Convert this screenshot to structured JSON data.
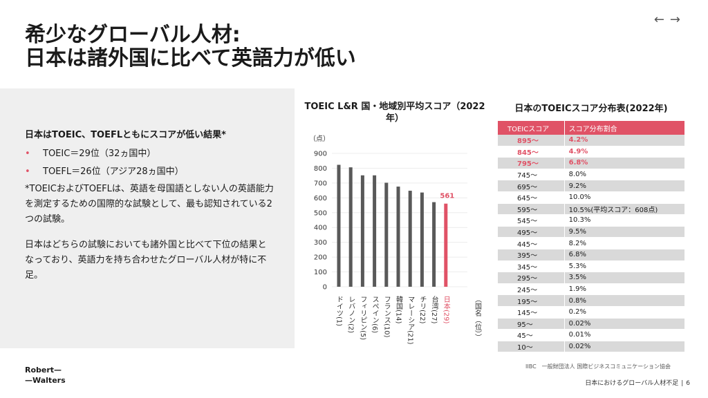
{
  "nav": {
    "prev": "←",
    "next": "→"
  },
  "title": {
    "line1": "希少なグローバル人材:",
    "line2": "日本は諸外国に比べて英語力が低い"
  },
  "left_panel": {
    "heading": "日本はTOEIC、TOEFLともにスコアが低い結果*",
    "bullets": [
      "TOEIC＝29位（32ヵ国中）",
      "TOEFL＝26位（アジア28ヵ国中）"
    ],
    "note": "*TOEICおよびTOEFLは、英語を母国語としない人の英語能力を測定するための国際的な試験として、最も認知されている2つの試験。",
    "conclusion": "日本はどちらの試験においても諸外国と比べて下位の結果となっており、英語力を持ち合わせたグローバル人材が特に不足。"
  },
  "chart_data": {
    "type": "bar",
    "title": "TOEIC L&R 国・地域別平均スコア（2022年）",
    "ylabel": "（点）",
    "xlabel": "（国名（位））",
    "ylim": [
      0,
      900
    ],
    "yticks": [
      0,
      100,
      200,
      300,
      400,
      500,
      600,
      700,
      800,
      900
    ],
    "categories": [
      "ドイツ(1)",
      "レバノン(2)",
      "フィリピン(5)",
      "スペイン(6)",
      "フランス(10)",
      "韓国(14)",
      "マレーシア(21)",
      "チリ(22)",
      "台湾(27)",
      "日本(29)"
    ],
    "values": [
      823,
      806,
      752,
      752,
      702,
      676,
      648,
      636,
      571,
      561
    ],
    "highlight_index": 9,
    "highlight_label": "561",
    "bar_color": "#595959",
    "highlight_color": "#e05266"
  },
  "table": {
    "title": "日本のTOEICスコア分布表(2022年)",
    "headers": [
      "TOEICスコア",
      "スコア分布割合"
    ],
    "rows": [
      {
        "score": "895～",
        "pct": "4.2%",
        "hl": true
      },
      {
        "score": "845～",
        "pct": "4.9%",
        "hl": true
      },
      {
        "score": "795～",
        "pct": "6.8%",
        "hl": true
      },
      {
        "score": "745～",
        "pct": "8.0%"
      },
      {
        "score": "695～",
        "pct": "9.2%"
      },
      {
        "score": "645～",
        "pct": "10.0%"
      },
      {
        "score": "595～",
        "pct": "10.5%(平均スコア：608点)"
      },
      {
        "score": "545～",
        "pct": "10.3%"
      },
      {
        "score": "495～",
        "pct": "9.5%"
      },
      {
        "score": "445～",
        "pct": "8.2%"
      },
      {
        "score": "395～",
        "pct": "6.8%"
      },
      {
        "score": "345～",
        "pct": "5.3%"
      },
      {
        "score": "295～",
        "pct": "3.5%"
      },
      {
        "score": "245～",
        "pct": "1.9%"
      },
      {
        "score": "195～",
        "pct": "0.8%"
      },
      {
        "score": "145～",
        "pct": "0.2%"
      },
      {
        "score": "95～",
        "pct": "0.02%"
      },
      {
        "score": "45～",
        "pct": "0.01%"
      },
      {
        "score": "10～",
        "pct": "0.02%"
      }
    ]
  },
  "source": "IIBC　一般財団法人 国際ビジネスコミュニケーション協会",
  "logo": {
    "line1": "Robert—",
    "line2": "—Walters"
  },
  "footer": {
    "text": "日本におけるグローバル人材不足",
    "sep": "|",
    "page": "6"
  },
  "colors": {
    "accent": "#e05266",
    "panel_bg": "#efefef",
    "bar": "#595959"
  }
}
